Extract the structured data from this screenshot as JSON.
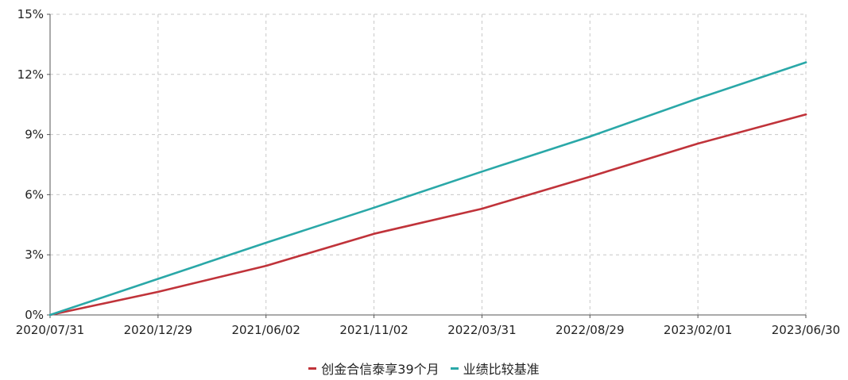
{
  "chart_data": {
    "type": "line",
    "title": "",
    "xlabel": "",
    "ylabel": "",
    "x_ticks": [
      "2020/07/31",
      "2020/12/29",
      "2021/06/02",
      "2021/11/02",
      "2022/03/31",
      "2022/08/29",
      "2023/02/01",
      "2023/06/30"
    ],
    "y_ticks": [
      "0%",
      "3%",
      "6%",
      "9%",
      "12%",
      "15%"
    ],
    "ylim": [
      0,
      15
    ],
    "grid": true,
    "legend_position": "bottom-center",
    "series": [
      {
        "name": "创金合信泰享39个月",
        "color": "#c0333a",
        "values": [
          0.0,
          1.15,
          2.45,
          4.05,
          5.3,
          6.9,
          8.55,
          10.0
        ]
      },
      {
        "name": "业绩比较基准",
        "color": "#2aa8a8",
        "values": [
          0.0,
          1.8,
          3.6,
          5.35,
          7.15,
          8.9,
          10.8,
          12.6
        ]
      }
    ]
  }
}
